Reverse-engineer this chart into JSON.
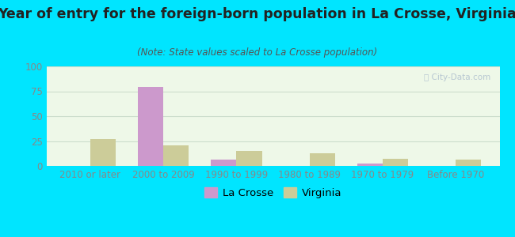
{
  "title": "Year of entry for the foreign-born population in La Crosse, Virginia",
  "subtitle": "(Note: State values scaled to La Crosse population)",
  "categories": [
    "2010 or later",
    "2000 to 2009",
    "1990 to 1999",
    "1980 to 1989",
    "1970 to 1979",
    "Before 1970"
  ],
  "lacrosse_values": [
    0,
    79,
    6,
    0,
    2,
    0
  ],
  "virginia_values": [
    27,
    21,
    15,
    13,
    7,
    6
  ],
  "lacrosse_color": "#cc99cc",
  "virginia_color": "#cccc99",
  "bg_outer": "#00e5ff",
  "bar_width": 0.35,
  "ylim": [
    0,
    100
  ],
  "yticks": [
    0,
    25,
    50,
    75,
    100
  ],
  "grid_color": "#ccddcc",
  "title_fontsize": 12.5,
  "subtitle_fontsize": 8.5,
  "tick_fontsize": 8.5,
  "legend_fontsize": 9.5,
  "axis_label_color": "#888888",
  "title_color": "#222222",
  "subtitle_color": "#555555"
}
